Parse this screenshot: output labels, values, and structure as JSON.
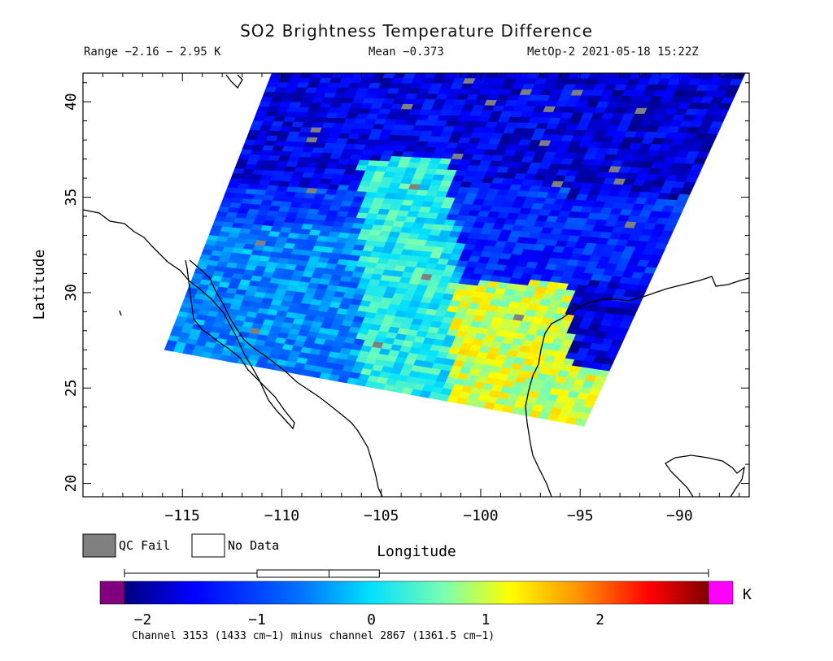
{
  "title": "SO2 Brightness Temperature Difference",
  "range_text": "Range −2.16 − 2.95 K",
  "mean_text": "Mean −0.373",
  "satellite_text": "MetOp-2 2021-05-18 15:22Z",
  "xlabel": "Longitude",
  "ylabel": "Latitude",
  "x_ticks": [
    "−115",
    "−110",
    "−105",
    "−100",
    "−95",
    "−90"
  ],
  "y_ticks": [
    "20",
    "25",
    "30",
    "35",
    "40"
  ],
  "x_tick_values": [
    -115,
    -110,
    -105,
    -100,
    -95,
    -90
  ],
  "y_tick_values": [
    20,
    25,
    30,
    35,
    40
  ],
  "lon_range": [
    -120,
    -86.5
  ],
  "lat_range": [
    19.3,
    41.5
  ],
  "legend": {
    "qc_fail": "QC Fail",
    "no_data": "No Data",
    "qc_fail_color": "#808080",
    "no_data_color": "#ffffff"
  },
  "colorbar": {
    "unit": "K",
    "ticks": [
      "−2",
      "−1",
      "0",
      "1",
      "2"
    ],
    "tick_values": [
      -2,
      -1,
      0,
      1,
      2
    ],
    "range": [
      -2.16,
      2.95
    ],
    "under_color": "#800080",
    "over_color": "#ff00ff",
    "box": {
      "min": -2.16,
      "q1": -1.0,
      "median": -0.37,
      "q3": 0.07,
      "max": 2.95
    },
    "caption": "Channel 3153 (1433 cm−1) minus channel 2867 (1361.5 cm−1)"
  },
  "chart_data": {
    "type": "heatmap",
    "title": "SO2 Brightness Temperature Difference",
    "xlabel": "Longitude",
    "ylabel": "Latitude",
    "xlim": [
      -120,
      -86.5
    ],
    "ylim": [
      19.3,
      41.5
    ],
    "value_range": [
      -2.16,
      2.95
    ],
    "mean": -0.373,
    "units": "K",
    "swath_corners": [
      [
        -115.9,
        27.0
      ],
      [
        -110.5,
        41.5
      ],
      [
        -86.7,
        41.5
      ],
      [
        -94.8,
        23.0
      ]
    ],
    "regions": [
      {
        "area": "north (lat 35-41.5)",
        "approx_value": -1.6
      },
      {
        "area": "central west (lat 27-33)",
        "approx_value": -0.5
      },
      {
        "area": "central (lon -106 to -102)",
        "approx_value": 0.2
      },
      {
        "area": "southeast (lon -100 to -95, lat 23-30)",
        "approx_value": 1.0
      },
      {
        "area": "east edge (lon -94 to -88)",
        "approx_value": -1.7
      }
    ]
  }
}
